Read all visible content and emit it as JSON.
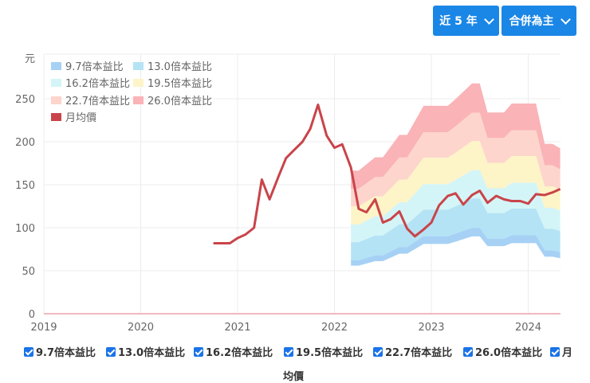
{
  "controls": {
    "range_label": "近 5 年",
    "mode_label": "合併為主"
  },
  "legend": [
    {
      "label": "9.7倍本益比",
      "color": "#a6d1f5"
    },
    {
      "label": "13.0倍本益比",
      "color": "#b4e3f5"
    },
    {
      "label": "16.2倍本益比",
      "color": "#d4f5f7"
    },
    {
      "label": "19.5倍本益比",
      "color": "#fdf4c8"
    },
    {
      "label": "22.7倍本益比",
      "color": "#fdd5cc"
    },
    {
      "label": "26.0倍本益比",
      "color": "#fab3b7"
    },
    {
      "label": "月均價",
      "color": "#c9444a"
    }
  ],
  "checkboxes": [
    {
      "label": "9.7倍本益比",
      "checked": true
    },
    {
      "label": "13.0倍本益比",
      "checked": true
    },
    {
      "label": "16.2倍本益比",
      "checked": true
    },
    {
      "label": "19.5倍本益比",
      "checked": true
    },
    {
      "label": "22.7倍本益比",
      "checked": true
    },
    {
      "label": "26.0倍本益比",
      "checked": true
    },
    {
      "label": "月",
      "checked": true
    }
  ],
  "checkbox_tail": "均價",
  "chart_data": {
    "type": "area",
    "title": "",
    "xlabel": "",
    "ylabel": "元",
    "ylim": [
      0,
      270
    ],
    "yticks": [
      0,
      50,
      100,
      150,
      200,
      250
    ],
    "xticks": [
      "2019",
      "2020",
      "2021",
      "2022",
      "2023",
      "2024"
    ],
    "grid": true,
    "legend_position": "top-left",
    "price_series": {
      "name": "月均價",
      "x": [
        2020.75,
        2020.92,
        2021.0,
        2021.08,
        2021.17,
        2021.25,
        2021.33,
        2021.42,
        2021.5,
        2021.58,
        2021.67,
        2021.75,
        2021.83,
        2021.92,
        2022.0,
        2022.08,
        2022.17,
        2022.25,
        2022.33,
        2022.42,
        2022.5,
        2022.58,
        2022.67,
        2022.75,
        2022.83,
        2022.92,
        2023.0,
        2023.08,
        2023.17,
        2023.25,
        2023.33,
        2023.42,
        2023.5,
        2023.58,
        2023.67,
        2023.75,
        2023.83,
        2023.92,
        2024.0,
        2024.08,
        2024.17,
        2024.25,
        2024.33
      ],
      "values": [
        82,
        82,
        88,
        92,
        100,
        156,
        133,
        159,
        181,
        190,
        200,
        215,
        243,
        207,
        193,
        197,
        170,
        122,
        118,
        133,
        106,
        110,
        119,
        99,
        90,
        98,
        106,
        126,
        137,
        140,
        127,
        138,
        143,
        129,
        137,
        133,
        131,
        131,
        128,
        139,
        138,
        141,
        145
      ]
    },
    "band_x": [
      2022.17,
      2022.25,
      2022.42,
      2022.5,
      2022.67,
      2022.75,
      2022.92,
      2023.0,
      2023.17,
      2023.25,
      2023.42,
      2023.5,
      2023.58,
      2023.67,
      2023.75,
      2023.83,
      2024.0,
      2024.08,
      2024.17,
      2024.25,
      2024.33
    ],
    "band_eps": [
      6.4,
      6.4,
      7.0,
      7.0,
      8.0,
      8.0,
      9.3,
      9.3,
      9.3,
      9.6,
      10.3,
      10.3,
      9.0,
      9.0,
      9.0,
      9.4,
      9.4,
      9.4,
      7.6,
      7.6,
      7.4
    ],
    "bands": [
      {
        "name": "9.7倍本益比",
        "multiple": 9.7
      },
      {
        "name": "13.0倍本益比",
        "multiple": 13.0
      },
      {
        "name": "16.2倍本益比",
        "multiple": 16.2
      },
      {
        "name": "19.5倍本益比",
        "multiple": 19.5
      },
      {
        "name": "22.7倍本益比",
        "multiple": 22.7
      },
      {
        "name": "26.0倍本益比",
        "multiple": 26.0
      }
    ]
  }
}
